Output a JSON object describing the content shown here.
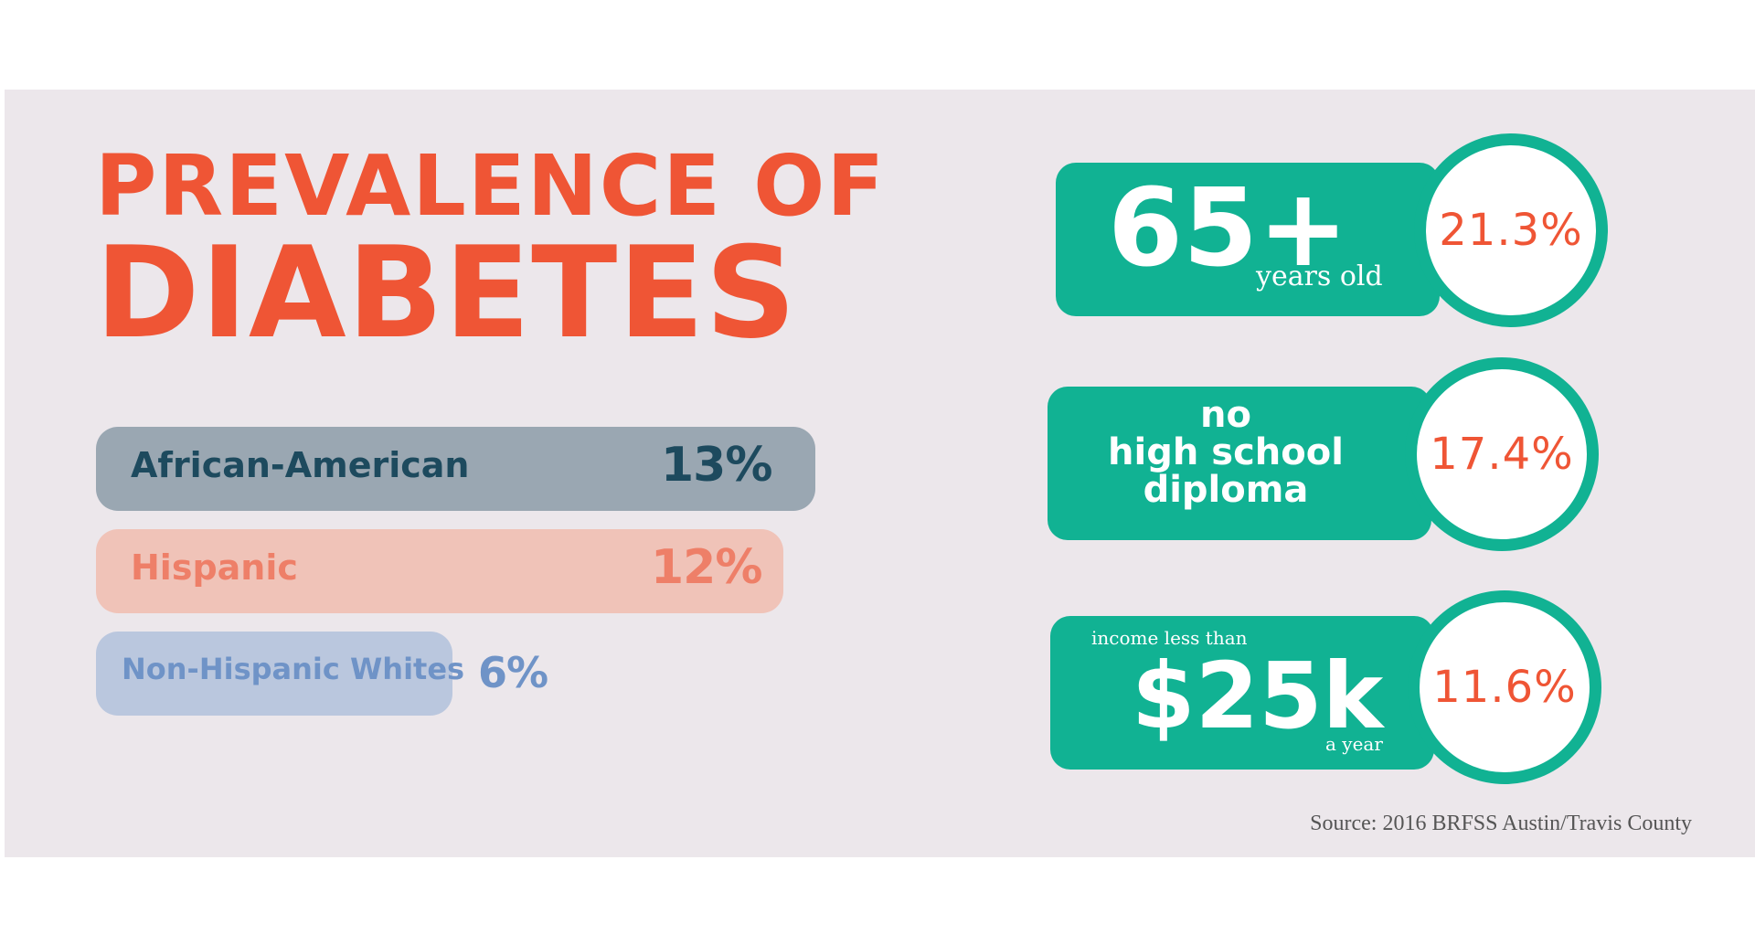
{
  "title": {
    "line1": "PREVALENCE OF",
    "line2": "DIABETES"
  },
  "chart_data": {
    "type": "bar",
    "categories": [
      "African-American",
      "Hispanic",
      "Non-Hispanic Whites"
    ],
    "values": [
      13,
      12,
      6
    ],
    "value_labels": [
      "13%",
      "12%",
      "6%"
    ],
    "colors": {
      "bars": [
        "#9aa7b2",
        "#f0c3b8",
        "#bac7de"
      ],
      "labels": [
        "#1d4a5e",
        "#ee7f68",
        "#6f93c7"
      ]
    }
  },
  "highlights": [
    {
      "big": "65+",
      "caption": "years old",
      "value": "21.3%"
    },
    {
      "lines": [
        "no",
        "high school",
        "diploma"
      ],
      "value": "17.4%"
    },
    {
      "caption_top": "income less than",
      "big": "$25k",
      "caption_bottom": "a year",
      "value": "11.6%"
    }
  ],
  "colors": {
    "accent": "#ef5535",
    "teal": "#11b293",
    "background": "#ece7eb"
  },
  "source": "Source: 2016 BRFSS Austin/Travis County"
}
